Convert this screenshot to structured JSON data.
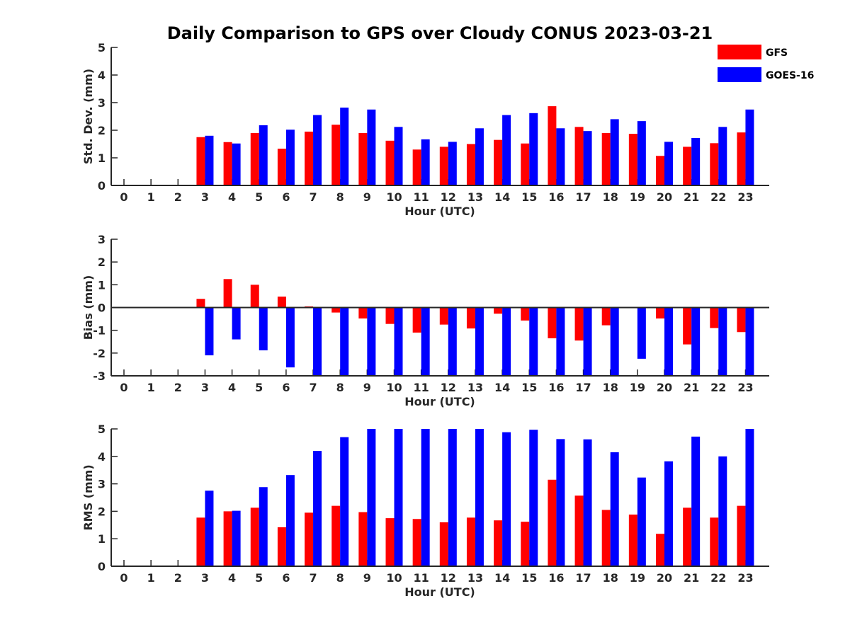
{
  "title": "Daily Comparison to GPS over Cloudy CONUS 2023-03-21",
  "colors": {
    "GFS": "#ff0000",
    "GOES-16": "#0000ff"
  },
  "legend": {
    "placement": "top-right",
    "items": [
      "GFS",
      "GOES-16"
    ]
  },
  "chart_data": [
    {
      "type": "bar",
      "ylabel": "Std. Dev. (mm)",
      "xlabel": "Hour (UTC)",
      "ylim": [
        0,
        5
      ],
      "yticks": [
        0,
        1,
        2,
        3,
        4,
        5
      ],
      "categories": [
        "0",
        "1",
        "2",
        "3",
        "4",
        "5",
        "6",
        "7",
        "8",
        "9",
        "10",
        "11",
        "12",
        "13",
        "14",
        "15",
        "16",
        "17",
        "18",
        "19",
        "20",
        "21",
        "22",
        "23"
      ],
      "series": [
        {
          "name": "GFS",
          "values": [
            null,
            null,
            null,
            1.75,
            1.57,
            1.9,
            1.33,
            1.95,
            2.2,
            1.9,
            1.62,
            1.3,
            1.4,
            1.5,
            1.65,
            1.52,
            2.87,
            2.12,
            1.9,
            1.87,
            1.07,
            1.4,
            1.53,
            1.92
          ]
        },
        {
          "name": "GOES-16",
          "values": [
            null,
            null,
            null,
            1.8,
            1.52,
            2.18,
            2.02,
            2.55,
            2.82,
            2.75,
            2.12,
            1.67,
            1.58,
            2.07,
            2.55,
            2.62,
            2.07,
            1.97,
            2.4,
            2.33,
            1.58,
            1.72,
            2.12,
            2.75
          ]
        }
      ]
    },
    {
      "type": "bar",
      "ylabel": "Bias (mm)",
      "xlabel": "Hour (UTC)",
      "ylim": [
        -3,
        3
      ],
      "yticks": [
        -3,
        -2,
        -1,
        0,
        1,
        2,
        3
      ],
      "categories": [
        "0",
        "1",
        "2",
        "3",
        "4",
        "5",
        "6",
        "7",
        "8",
        "9",
        "10",
        "11",
        "12",
        "13",
        "14",
        "15",
        "16",
        "17",
        "18",
        "19",
        "20",
        "21",
        "22",
        "23"
      ],
      "series": [
        {
          "name": "GFS",
          "values": [
            null,
            null,
            null,
            0.38,
            1.25,
            1.0,
            0.48,
            0.05,
            -0.22,
            -0.48,
            -0.72,
            -1.1,
            -0.75,
            -0.92,
            -0.27,
            -0.57,
            -1.35,
            -1.45,
            -0.78,
            0.03,
            -0.48,
            -1.62,
            -0.9,
            -1.08
          ]
        },
        {
          "name": "GOES-16",
          "values": [
            null,
            null,
            null,
            -2.1,
            -1.4,
            -1.88,
            -2.63,
            -3.0,
            -3.0,
            -3.0,
            -3.0,
            -3.0,
            -3.0,
            -3.0,
            -3.0,
            -3.0,
            -3.0,
            -3.0,
            -3.0,
            -2.25,
            -3.0,
            -3.0,
            -3.0,
            -3.0
          ]
        }
      ]
    },
    {
      "type": "bar",
      "ylabel": "RMS (mm)",
      "xlabel": "Hour (UTC)",
      "ylim": [
        0,
        5
      ],
      "yticks": [
        0,
        1,
        2,
        3,
        4,
        5
      ],
      "categories": [
        "0",
        "1",
        "2",
        "3",
        "4",
        "5",
        "6",
        "7",
        "8",
        "9",
        "10",
        "11",
        "12",
        "13",
        "14",
        "15",
        "16",
        "17",
        "18",
        "19",
        "20",
        "21",
        "22",
        "23"
      ],
      "series": [
        {
          "name": "GFS",
          "values": [
            null,
            null,
            null,
            1.77,
            2.0,
            2.13,
            1.42,
            1.95,
            2.2,
            1.97,
            1.75,
            1.72,
            1.6,
            1.77,
            1.67,
            1.62,
            3.15,
            2.57,
            2.05,
            1.88,
            1.18,
            2.13,
            1.77,
            2.2
          ]
        },
        {
          "name": "GOES-16",
          "values": [
            null,
            null,
            null,
            2.75,
            2.02,
            2.88,
            3.32,
            4.2,
            4.7,
            5.0,
            5.0,
            5.0,
            5.0,
            5.0,
            4.88,
            4.97,
            4.63,
            4.62,
            4.15,
            3.23,
            3.82,
            4.72,
            4.0,
            5.0
          ]
        }
      ]
    }
  ]
}
